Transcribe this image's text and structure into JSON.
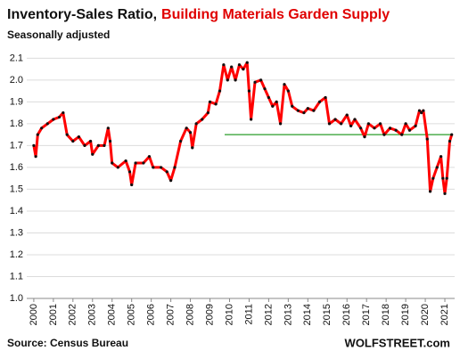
{
  "chart_data": {
    "type": "line",
    "title": "Inventory-Sales Ratio,",
    "title_highlight": "Building Materials Garden Supply",
    "title_highlight_color": "#e00000",
    "subtitle": "Seasonally adjusted",
    "source": "Source: Census Bureau",
    "brand": "WOLFSTREET.com",
    "x": [
      2000.0,
      2000.1,
      2000.2,
      2000.4,
      2000.7,
      2001.0,
      2001.3,
      2001.5,
      2001.7,
      2002.0,
      2002.3,
      2002.6,
      2002.9,
      2003.0,
      2003.3,
      2003.6,
      2003.8,
      2003.9,
      2004.0,
      2004.3,
      2004.7,
      2004.9,
      2005.0,
      2005.2,
      2005.6,
      2005.9,
      2006.1,
      2006.5,
      2006.8,
      2007.0,
      2007.2,
      2007.5,
      2007.8,
      2008.0,
      2008.1,
      2008.3,
      2008.6,
      2008.9,
      2009.0,
      2009.3,
      2009.5,
      2009.7,
      2009.9,
      2010.1,
      2010.3,
      2010.5,
      2010.7,
      2010.9,
      2011.0,
      2011.1,
      2011.3,
      2011.6,
      2011.8,
      2012.0,
      2012.2,
      2012.4,
      2012.6,
      2012.8,
      2013.0,
      2013.2,
      2013.5,
      2013.8,
      2014.0,
      2014.3,
      2014.6,
      2014.9,
      2015.1,
      2015.4,
      2015.7,
      2016.0,
      2016.2,
      2016.4,
      2016.7,
      2016.9,
      2017.1,
      2017.4,
      2017.7,
      2017.9,
      2018.2,
      2018.5,
      2018.8,
      2019.0,
      2019.2,
      2019.5,
      2019.7,
      2019.8,
      2019.9,
      2020.1,
      2020.25,
      2020.4,
      2020.6,
      2020.8,
      2020.9,
      2021.0,
      2021.1,
      2021.25,
      2021.35
    ],
    "values": [
      1.7,
      1.65,
      1.75,
      1.78,
      1.8,
      1.82,
      1.83,
      1.85,
      1.75,
      1.72,
      1.74,
      1.7,
      1.72,
      1.66,
      1.7,
      1.7,
      1.78,
      1.72,
      1.62,
      1.6,
      1.63,
      1.58,
      1.52,
      1.62,
      1.62,
      1.65,
      1.6,
      1.6,
      1.58,
      1.54,
      1.6,
      1.72,
      1.78,
      1.76,
      1.69,
      1.8,
      1.82,
      1.85,
      1.9,
      1.89,
      1.95,
      2.07,
      2.0,
      2.06,
      2.0,
      2.07,
      2.05,
      2.08,
      1.95,
      1.82,
      1.99,
      2.0,
      1.96,
      1.92,
      1.88,
      1.9,
      1.8,
      1.98,
      1.95,
      1.88,
      1.86,
      1.85,
      1.87,
      1.86,
      1.9,
      1.92,
      1.8,
      1.82,
      1.8,
      1.84,
      1.79,
      1.82,
      1.78,
      1.74,
      1.8,
      1.78,
      1.8,
      1.75,
      1.78,
      1.77,
      1.75,
      1.8,
      1.77,
      1.79,
      1.86,
      1.85,
      1.86,
      1.73,
      1.49,
      1.55,
      1.6,
      1.65,
      1.55,
      1.48,
      1.55,
      1.72,
      1.75
    ],
    "color": "#ff0000",
    "marker_color": "#111111",
    "reference_line": {
      "value": 1.75,
      "xmin": 2009.75,
      "xmax": 2021.3,
      "color": "#2a9d2a"
    },
    "xlim": [
      1999.64,
      2021.5
    ],
    "xticks": [
      2000,
      2001,
      2002,
      2003,
      2004,
      2005,
      2006,
      2007,
      2008,
      2009,
      2010,
      2011,
      2012,
      2013,
      2014,
      2015,
      2016,
      2017,
      2018,
      2019,
      2020,
      2021
    ],
    "ylim": [
      1.0,
      2.13
    ],
    "yticks": [
      {
        "value": 1.0,
        "label": "1.0"
      },
      1.1,
      1.2,
      1.3,
      1.4,
      1.5,
      1.6,
      1.7,
      1.8,
      1.9,
      {
        "value": 2.0,
        "label": "2.0"
      },
      2.1
    ],
    "grid": true
  }
}
